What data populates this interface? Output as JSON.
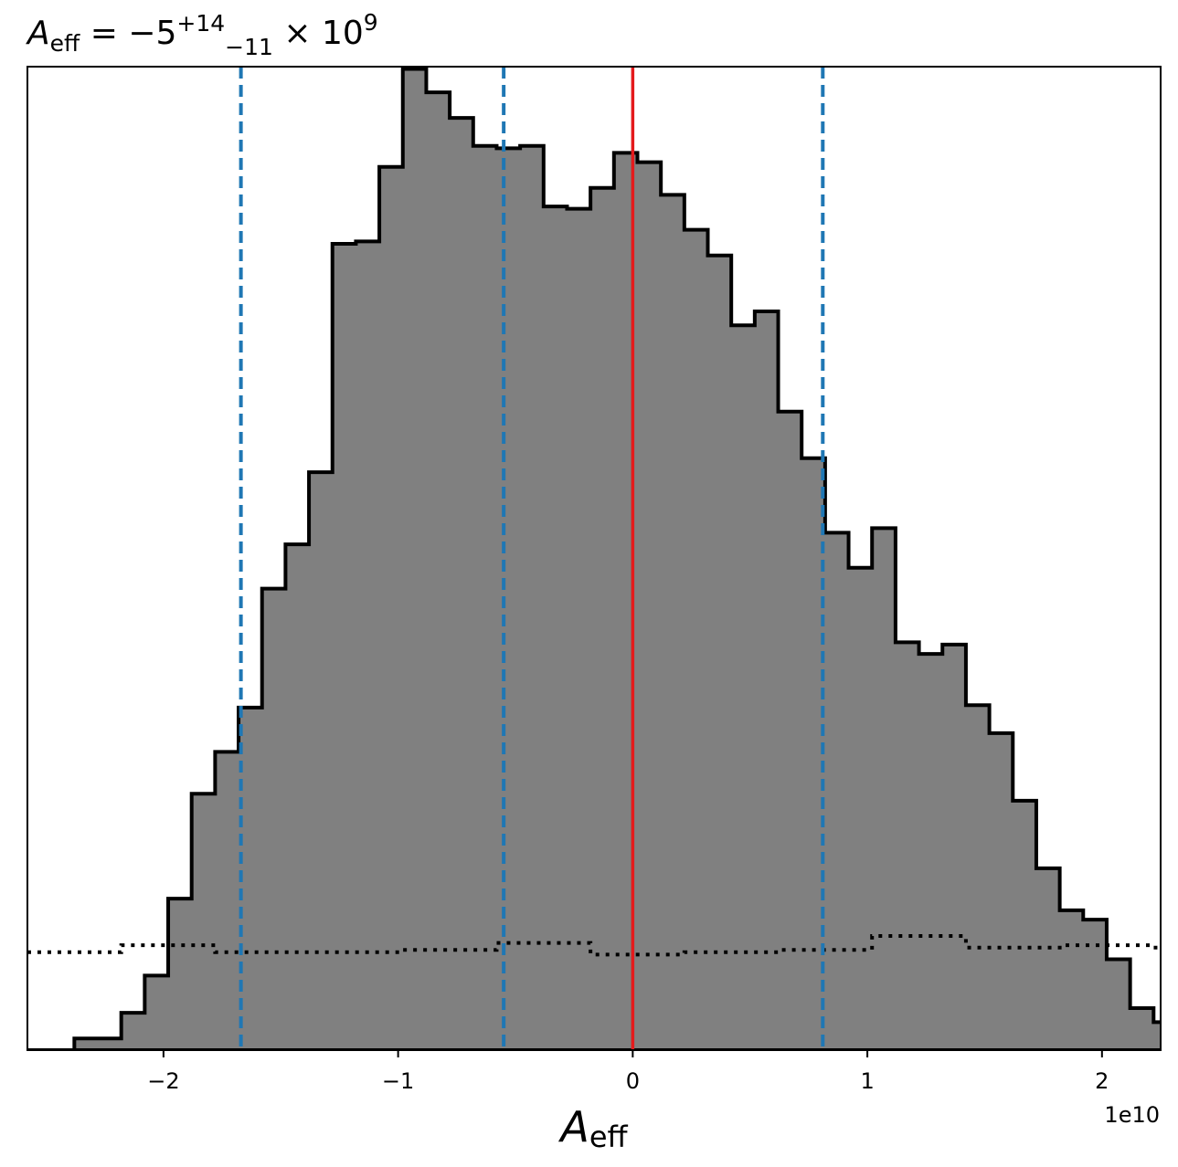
{
  "chart_data": {
    "type": "histogram",
    "title": {
      "base": "A",
      "base_sub": "eff",
      "eq": " = −5",
      "sup": "+14",
      "sub": "−11",
      "tail": " × 10",
      "tail_sup": "9"
    },
    "xlabel": {
      "base": "A",
      "sub": "eff"
    },
    "ylabel": "",
    "offset_label": "1e10",
    "xlim": [
      -2.58,
      2.25
    ],
    "ylim": [
      0,
      422
    ],
    "xticks": [
      {
        "value": -2,
        "label": "−2"
      },
      {
        "value": -1,
        "label": "−1"
      },
      {
        "value": 0,
        "label": "0"
      },
      {
        "value": 1,
        "label": "1"
      },
      {
        "value": 2,
        "label": "2"
      }
    ],
    "grid": false,
    "posterior": {
      "bin_start": -2.58,
      "bin_width": 0.1,
      "counts": [
        0,
        0,
        5,
        5,
        16,
        32,
        65,
        110,
        128,
        147,
        198,
        217,
        248,
        346,
        347,
        379,
        421,
        411,
        400,
        388,
        387,
        388,
        362,
        361,
        370,
        385,
        381,
        367,
        352,
        341,
        311,
        317,
        274,
        254,
        222,
        207,
        224,
        175,
        170,
        174,
        148,
        136,
        107,
        78,
        60,
        56,
        39,
        18,
        12,
        11,
        8,
        5,
        5,
        4,
        1,
        0
      ],
      "fill": "#808080",
      "edge": "#000000"
    },
    "prior": {
      "bin_start": -2.58,
      "bin_width": 0.4,
      "counts": [
        42,
        45,
        42,
        42,
        43,
        46,
        41,
        42,
        43,
        49,
        44,
        45,
        44,
        39
      ],
      "style": "dotted",
      "color": "#000000"
    },
    "quantile_lines": {
      "values": [
        -1.67,
        -0.55,
        0.81
      ],
      "color": "#1f77b4",
      "style": "dashed"
    },
    "truth_line": {
      "value": 0.0,
      "color": "#e41a1c"
    }
  }
}
